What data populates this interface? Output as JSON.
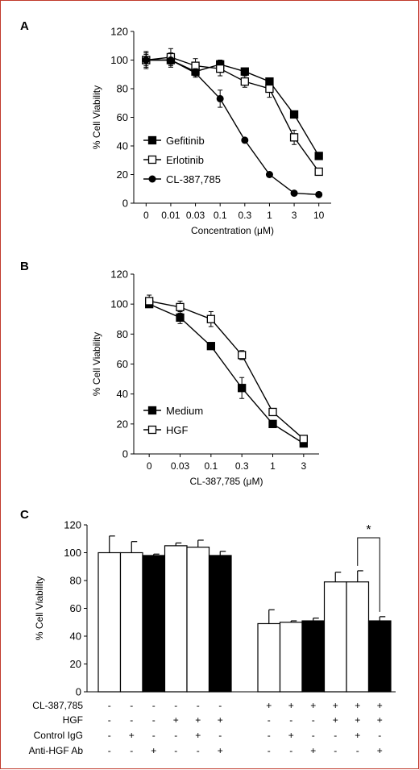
{
  "frame_color": "#c0392b",
  "chart_data": [
    {
      "panel": "A",
      "type": "line",
      "x": [
        "0",
        "0.01",
        "0.03",
        "0.1",
        "0.3",
        "1",
        "3",
        "10"
      ],
      "xlabel": "Concentration (μM)",
      "ylabel": "% Cell Viability",
      "ylim": [
        0,
        120
      ],
      "yticks": [
        0,
        20,
        40,
        60,
        80,
        100,
        120
      ],
      "grid": false,
      "legend_position": "bottom-left",
      "series": [
        {
          "name": "Gefitinib",
          "marker": "filled-square",
          "values": [
            100,
            100,
            92,
            97,
            92,
            85,
            62,
            33
          ],
          "errors": [
            4,
            3,
            3,
            3,
            2,
            2,
            2,
            2
          ]
        },
        {
          "name": "Erlotinib",
          "marker": "open-square",
          "values": [
            100,
            102,
            96,
            94,
            85,
            80,
            46,
            22
          ],
          "errors": [
            5,
            6,
            5,
            5,
            4,
            6,
            5,
            2
          ]
        },
        {
          "name": "CL-387,785",
          "marker": "filled-circle",
          "values": [
            100,
            100,
            91,
            73,
            44,
            20,
            7,
            6
          ],
          "errors": [
            6,
            5,
            3,
            6,
            1,
            1,
            1,
            1
          ]
        }
      ]
    },
    {
      "panel": "B",
      "type": "line",
      "x": [
        "0",
        "0.03",
        "0.1",
        "0.3",
        "1",
        "3"
      ],
      "xlabel": "CL-387,785 (μM)",
      "ylabel": "% Cell Viability",
      "ylim": [
        0,
        120
      ],
      "yticks": [
        0,
        20,
        40,
        60,
        80,
        100,
        120
      ],
      "grid": false,
      "legend_position": "bottom-left",
      "series": [
        {
          "name": "Medium",
          "marker": "filled-square",
          "values": [
            100,
            91,
            72,
            44,
            20,
            7
          ],
          "errors": [
            2,
            4,
            2,
            7,
            1,
            1
          ]
        },
        {
          "name": "HGF",
          "marker": "open-square",
          "values": [
            102,
            98,
            90,
            66,
            28,
            10
          ],
          "errors": [
            4,
            4,
            5,
            3,
            1,
            1
          ]
        }
      ]
    },
    {
      "panel": "C",
      "type": "bar",
      "ylabel": "% Cell Viability",
      "ylim": [
        0,
        120
      ],
      "yticks": [
        0,
        20,
        40,
        60,
        80,
        100,
        120
      ],
      "grid": false,
      "groups": [
        {
          "bars": [
            {
              "value": 100,
              "error": 12,
              "fill": "white"
            },
            {
              "value": 100,
              "error": 8,
              "fill": "white"
            },
            {
              "value": 98,
              "error": 1,
              "fill": "black"
            },
            {
              "value": 105,
              "error": 2,
              "fill": "white"
            },
            {
              "value": 104,
              "error": 5,
              "fill": "white"
            },
            {
              "value": 98,
              "error": 3,
              "fill": "black"
            }
          ]
        },
        {
          "bars": [
            {
              "value": 49,
              "error": 10,
              "fill": "white"
            },
            {
              "value": 50,
              "error": 1,
              "fill": "white"
            },
            {
              "value": 51,
              "error": 2,
              "fill": "black"
            },
            {
              "value": 79,
              "error": 7,
              "fill": "white"
            },
            {
              "value": 79,
              "error": 8,
              "fill": "white"
            },
            {
              "value": 51,
              "error": 3,
              "fill": "black"
            }
          ]
        }
      ],
      "significance": {
        "label": "*",
        "group": 1,
        "from_bar": 4,
        "to_bar": 5
      },
      "conditions": [
        {
          "label": "CL-387,785",
          "signs": [
            [
              "-",
              "-",
              "-",
              "-",
              "-",
              "-"
            ],
            [
              "+",
              "+",
              "+",
              "+",
              "+",
              "+"
            ]
          ]
        },
        {
          "label": "HGF",
          "signs": [
            [
              "-",
              "-",
              "-",
              "+",
              "+",
              "+"
            ],
            [
              "-",
              "-",
              "-",
              "+",
              "+",
              "+"
            ]
          ]
        },
        {
          "label": "Control IgG",
          "signs": [
            [
              "-",
              "+",
              "-",
              "-",
              "+",
              "-"
            ],
            [
              "-",
              "+",
              "-",
              "-",
              "+",
              "-"
            ]
          ]
        },
        {
          "label": "Anti-HGF Ab",
          "signs": [
            [
              "-",
              "-",
              "+",
              "-",
              "-",
              "+"
            ],
            [
              "-",
              "-",
              "+",
              "-",
              "-",
              "+"
            ]
          ]
        }
      ]
    }
  ],
  "panel_labels": {
    "a": "A",
    "b": "B",
    "c": "C"
  }
}
